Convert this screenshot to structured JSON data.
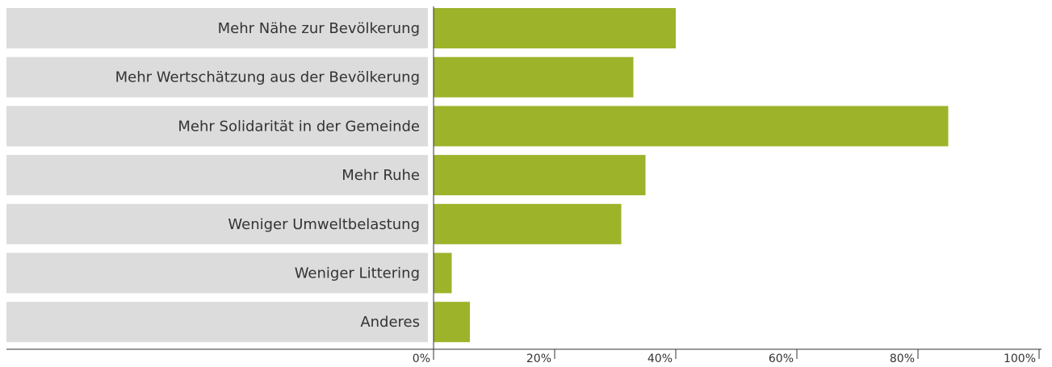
{
  "chart_data": {
    "type": "bar",
    "orientation": "horizontal",
    "categories": [
      "Mehr Nähe zur Bevölkerung",
      "Mehr Wertschätzung aus der Bevölkerung",
      "Mehr Solidarität in der Gemeinde",
      "Mehr Ruhe",
      "Weniger Umweltbelastung",
      "Weniger Littering",
      "Anderes"
    ],
    "values": [
      40,
      33,
      85,
      35,
      31,
      3,
      6
    ],
    "color": "#9db32a",
    "xlim": [
      0,
      100
    ],
    "xticks": [
      {
        "value": 0,
        "label": "0%"
      },
      {
        "value": 20,
        "label": "20%"
      },
      {
        "value": 40,
        "label": "40%"
      },
      {
        "value": 60,
        "label": "60%"
      },
      {
        "value": 80,
        "label": "80%"
      },
      {
        "value": 100,
        "label": "100%"
      }
    ]
  }
}
